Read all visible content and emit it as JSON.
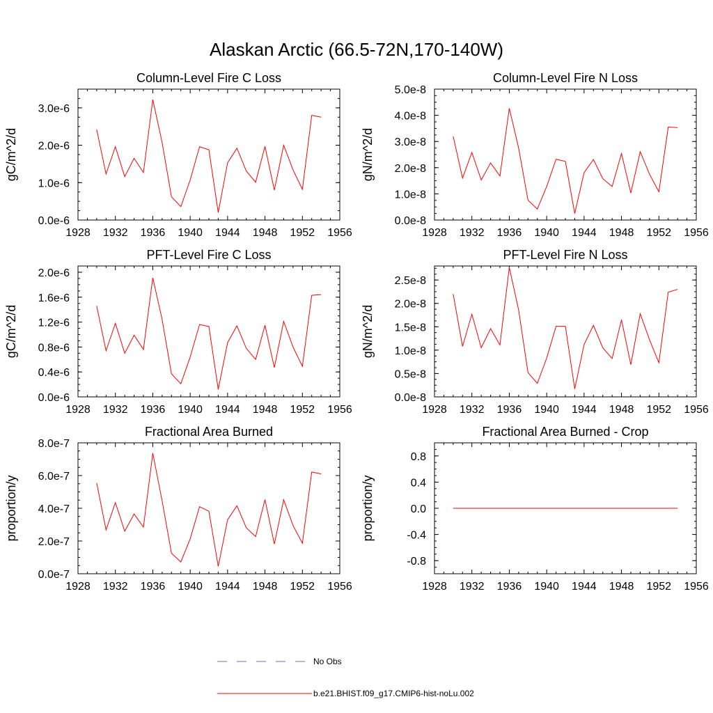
{
  "figure": {
    "title": "Alaskan Arctic (66.5-72N,170-140W)",
    "legend": {
      "obs_label": "No Obs",
      "obs_color": "#6b6bc8",
      "model_label": "b.e21.BHIST.f09_g17.CMIP6-hist-noLu.002",
      "model_color": "#ff0000"
    }
  },
  "chart_data": [
    {
      "type": "line",
      "title": "Column-Level Fire C Loss",
      "ylabel": "gC/m^2/d",
      "xlim": [
        1928,
        1956
      ],
      "xticks": [
        "1928",
        "1932",
        "1936",
        "1940",
        "1944",
        "1948",
        "1952",
        "1956"
      ],
      "ylim": [
        0,
        3.5e-06
      ],
      "yticks": [
        {
          "value": 0,
          "label": "0.0e-6"
        },
        {
          "value": 1e-06,
          "label": "1.0e-6"
        },
        {
          "value": 2e-06,
          "label": "2.0e-6"
        },
        {
          "value": 3e-06,
          "label": "3.0e-6"
        }
      ],
      "series": [
        {
          "color": "#ff0000",
          "x": [
            1930,
            1931,
            1932,
            1933,
            1934,
            1935,
            1936,
            1937,
            1938,
            1939,
            1940,
            1941,
            1942,
            1943,
            1944,
            1945,
            1946,
            1947,
            1948,
            1949,
            1950,
            1951,
            1952,
            1953,
            1954
          ],
          "values": [
            2.42e-06,
            1.23e-06,
            1.96e-06,
            1.16e-06,
            1.65e-06,
            1.27e-06,
            3.22e-06,
            2.07e-06,
            6.2e-07,
            3.6e-07,
            1.07e-06,
            1.96e-06,
            1.88e-06,
            2e-07,
            1.53e-06,
            1.92e-06,
            1.31e-06,
            1.01e-06,
            1.97e-06,
            8e-07,
            2e-06,
            1.34e-06,
            8.2e-07,
            2.8e-06,
            2.75e-06
          ]
        }
      ]
    },
    {
      "type": "line",
      "title": "Column-Level Fire N Loss",
      "ylabel": "gN/m^2/d",
      "xlim": [
        1928,
        1956
      ],
      "xticks": [
        "1928",
        "1932",
        "1936",
        "1940",
        "1944",
        "1948",
        "1952",
        "1956"
      ],
      "ylim": [
        0,
        5e-08
      ],
      "yticks": [
        {
          "value": 0,
          "label": "0.0e-8"
        },
        {
          "value": 1e-08,
          "label": "1.0e-8"
        },
        {
          "value": 2e-08,
          "label": "2.0e-8"
        },
        {
          "value": 3e-08,
          "label": "3.0e-8"
        },
        {
          "value": 4e-08,
          "label": "4.0e-8"
        },
        {
          "value": 5e-08,
          "label": "5.0e-8"
        }
      ],
      "series": [
        {
          "color": "#ff0000",
          "x": [
            1930,
            1931,
            1932,
            1933,
            1934,
            1935,
            1936,
            1937,
            1938,
            1939,
            1940,
            1941,
            1942,
            1943,
            1944,
            1945,
            1946,
            1947,
            1948,
            1949,
            1950,
            1951,
            1952,
            1953,
            1954
          ],
          "values": [
            3.2e-08,
            1.6e-08,
            2.58e-08,
            1.53e-08,
            2.18e-08,
            1.68e-08,
            4.27e-08,
            2.75e-08,
            7.6e-09,
            4.2e-09,
            1.28e-08,
            2.32e-08,
            2.24e-08,
            2.5e-09,
            1.81e-08,
            2.31e-08,
            1.58e-08,
            1.28e-08,
            2.54e-08,
            1.03e-08,
            2.61e-08,
            1.75e-08,
            1.08e-08,
            3.55e-08,
            3.53e-08
          ]
        }
      ]
    },
    {
      "type": "line",
      "title": "PFT-Level Fire C Loss",
      "ylabel": "gC/m^2/d",
      "xlim": [
        1928,
        1956
      ],
      "xticks": [
        "1928",
        "1932",
        "1936",
        "1940",
        "1944",
        "1948",
        "1952",
        "1956"
      ],
      "ylim": [
        0,
        2.1e-06
      ],
      "yticks": [
        {
          "value": 0,
          "label": "0.0e-6"
        },
        {
          "value": 4e-07,
          "label": "0.4e-6"
        },
        {
          "value": 8e-07,
          "label": "0.8e-6"
        },
        {
          "value": 1.2e-06,
          "label": "1.2e-6"
        },
        {
          "value": 1.6e-06,
          "label": "1.6e-6"
        },
        {
          "value": 2e-06,
          "label": "2.0e-6"
        }
      ],
      "series": [
        {
          "color": "#ff0000",
          "x": [
            1930,
            1931,
            1932,
            1933,
            1934,
            1935,
            1936,
            1937,
            1938,
            1939,
            1940,
            1941,
            1942,
            1943,
            1944,
            1945,
            1946,
            1947,
            1948,
            1949,
            1950,
            1951,
            1952,
            1953,
            1954
          ],
          "values": [
            1.46e-06,
            7.4e-07,
            1.18e-06,
            7e-07,
            9.9e-07,
            7.6e-07,
            1.91e-06,
            1.24e-06,
            3.7e-07,
            2.1e-07,
            6.4e-07,
            1.16e-06,
            1.13e-06,
            1.2e-07,
            8.7e-07,
            1.14e-06,
            7.8e-07,
            6e-07,
            1.15e-06,
            4.7e-07,
            1.21e-06,
            8e-07,
            4.9e-07,
            1.63e-06,
            1.64e-06
          ]
        }
      ]
    },
    {
      "type": "line",
      "title": "PFT-Level Fire N Loss",
      "ylabel": "gN/m^2/d",
      "xlim": [
        1928,
        1956
      ],
      "xticks": [
        "1928",
        "1932",
        "1936",
        "1940",
        "1944",
        "1948",
        "1952",
        "1956"
      ],
      "ylim": [
        0,
        2.8e-08
      ],
      "yticks": [
        {
          "value": 0,
          "label": "0.0e-8"
        },
        {
          "value": 5e-09,
          "label": "0.5e-8"
        },
        {
          "value": 1e-08,
          "label": "1.0e-8"
        },
        {
          "value": 1.5e-08,
          "label": "1.5e-8"
        },
        {
          "value": 2e-08,
          "label": "2.0e-8"
        },
        {
          "value": 2.5e-08,
          "label": "2.5e-8"
        }
      ],
      "series": [
        {
          "color": "#ff0000",
          "x": [
            1930,
            1931,
            1932,
            1933,
            1934,
            1935,
            1936,
            1937,
            1938,
            1939,
            1940,
            1941,
            1942,
            1943,
            1944,
            1945,
            1946,
            1947,
            1948,
            1949,
            1950,
            1951,
            1952,
            1953,
            1954
          ],
          "values": [
            2.2e-08,
            1.08e-08,
            1.77e-08,
            1.05e-08,
            1.46e-08,
            1.11e-08,
            2.77e-08,
            1.86e-08,
            5.2e-09,
            2.9e-09,
            8.3e-09,
            1.51e-08,
            1.51e-08,
            1.7e-09,
            1.12e-08,
            1.53e-08,
            1.05e-08,
            8.2e-09,
            1.65e-08,
            6.9e-09,
            1.78e-08,
            1.22e-08,
            7.3e-09,
            2.24e-08,
            2.3e-08
          ]
        }
      ]
    },
    {
      "type": "line",
      "title": "Fractional Area Burned",
      "ylabel": "proportion/y",
      "xlim": [
        1928,
        1956
      ],
      "xticks": [
        "1928",
        "1932",
        "1936",
        "1940",
        "1944",
        "1948",
        "1952",
        "1956"
      ],
      "ylim": [
        0,
        8e-07
      ],
      "yticks": [
        {
          "value": 0,
          "label": "0.0e-7"
        },
        {
          "value": 2e-07,
          "label": "2.0e-7"
        },
        {
          "value": 4e-07,
          "label": "4.0e-7"
        },
        {
          "value": 6e-07,
          "label": "6.0e-7"
        },
        {
          "value": 8e-07,
          "label": "8.0e-7"
        }
      ],
      "series": [
        {
          "color": "#ff0000",
          "x": [
            1930,
            1931,
            1932,
            1933,
            1934,
            1935,
            1936,
            1937,
            1938,
            1939,
            1940,
            1941,
            1942,
            1943,
            1944,
            1945,
            1946,
            1947,
            1948,
            1949,
            1950,
            1951,
            1952,
            1953,
            1954
          ],
          "values": [
            5.55e-07,
            2.68e-07,
            4.35e-07,
            2.6e-07,
            3.65e-07,
            2.85e-07,
            7.37e-07,
            4.45e-07,
            1.25e-07,
            7.2e-08,
            2.13e-07,
            4.1e-07,
            3.82e-07,
            4.5e-08,
            3.3e-07,
            4.15e-07,
            2.81e-07,
            2.27e-07,
            4.53e-07,
            1.82e-07,
            4.52e-07,
            2.95e-07,
            1.86e-07,
            6.22e-07,
            6.1e-07
          ]
        }
      ]
    },
    {
      "type": "line",
      "title": "Fractional Area Burned - Crop",
      "ylabel": "proportion/y",
      "xlim": [
        1928,
        1956
      ],
      "xticks": [
        "1928",
        "1932",
        "1936",
        "1940",
        "1944",
        "1948",
        "1952",
        "1956"
      ],
      "ylim": [
        -1.0,
        1.0
      ],
      "yticks": [
        {
          "value": -0.8,
          "label": "-0.8"
        },
        {
          "value": -0.4,
          "label": "-0.4"
        },
        {
          "value": 0.0,
          "label": "0.0"
        },
        {
          "value": 0.4,
          "label": "0.4"
        },
        {
          "value": 0.8,
          "label": "0.8"
        }
      ],
      "series": [
        {
          "color": "#ff0000",
          "x": [
            1930,
            1931,
            1932,
            1933,
            1934,
            1935,
            1936,
            1937,
            1938,
            1939,
            1940,
            1941,
            1942,
            1943,
            1944,
            1945,
            1946,
            1947,
            1948,
            1949,
            1950,
            1951,
            1952,
            1953,
            1954
          ],
          "values": [
            0,
            0,
            0,
            0,
            0,
            0,
            0,
            0,
            0,
            0,
            0,
            0,
            0,
            0,
            0,
            0,
            0,
            0,
            0,
            0,
            0,
            0,
            0,
            0,
            0
          ]
        }
      ]
    }
  ]
}
